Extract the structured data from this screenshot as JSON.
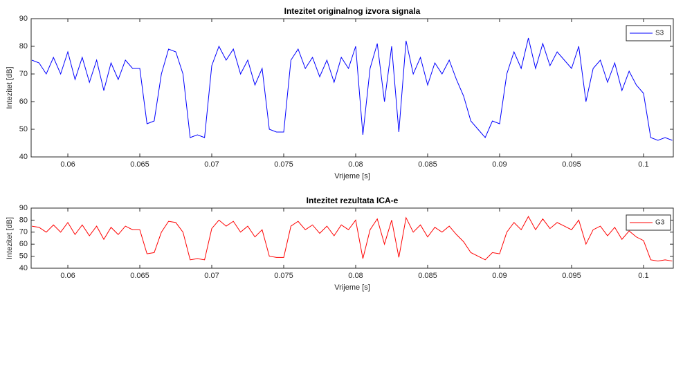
{
  "chart_data": [
    {
      "type": "line",
      "title": "Intezitet originalnog izvora signala",
      "xlabel": "Vrijeme [s]",
      "ylabel": "Intezitet [dB]",
      "x": [
        0.0575,
        0.058,
        0.0585,
        0.059,
        0.0595,
        0.06,
        0.0605,
        0.061,
        0.0615,
        0.062,
        0.0625,
        0.063,
        0.0635,
        0.064,
        0.0645,
        0.065,
        0.0655,
        0.066,
        0.0665,
        0.067,
        0.0675,
        0.068,
        0.0685,
        0.069,
        0.0695,
        0.07,
        0.0705,
        0.071,
        0.0715,
        0.072,
        0.0725,
        0.073,
        0.0735,
        0.074,
        0.0745,
        0.075,
        0.0755,
        0.076,
        0.0765,
        0.077,
        0.0775,
        0.078,
        0.0785,
        0.079,
        0.0795,
        0.08,
        0.0805,
        0.081,
        0.0815,
        0.082,
        0.0825,
        0.083,
        0.0835,
        0.084,
        0.0845,
        0.085,
        0.0855,
        0.086,
        0.0865,
        0.087,
        0.0875,
        0.088,
        0.0885,
        0.089,
        0.0895,
        0.09,
        0.0905,
        0.091,
        0.0915,
        0.092,
        0.0925,
        0.093,
        0.0935,
        0.094,
        0.0945,
        0.095,
        0.0955,
        0.096,
        0.0965,
        0.097,
        0.0975,
        0.098,
        0.0985,
        0.099,
        0.0995,
        0.1,
        0.1005,
        0.101,
        0.1015,
        0.102
      ],
      "series": [
        {
          "name": "S3",
          "color": "#0000ff",
          "values": [
            75,
            74,
            70,
            76,
            70,
            78,
            68,
            76,
            67,
            75,
            64,
            74,
            68,
            75,
            72,
            72,
            52,
            53,
            70,
            79,
            78,
            70,
            47,
            48,
            47,
            73,
            80,
            75,
            79,
            70,
            75,
            66,
            72,
            50,
            49,
            49,
            75,
            79,
            72,
            76,
            69,
            75,
            67,
            76,
            72,
            80,
            48,
            72,
            81,
            60,
            80,
            49,
            82,
            70,
            76,
            66,
            74,
            70,
            75,
            68,
            62,
            53,
            50,
            47,
            53,
            52,
            70,
            78,
            72,
            83,
            72,
            81,
            73,
            78,
            75,
            72,
            80,
            60,
            72,
            75,
            67,
            74,
            64,
            71,
            66,
            63,
            47,
            46,
            47,
            46
          ]
        }
      ],
      "xlim": [
        0.05745,
        0.10207
      ],
      "ylim": [
        40,
        90
      ],
      "xticks": [
        0.06,
        0.065,
        0.07,
        0.075,
        0.08,
        0.085,
        0.09,
        0.095,
        0.1
      ],
      "yticks": [
        40,
        50,
        60,
        70,
        80,
        90
      ],
      "grid": false,
      "legend": "upper right"
    },
    {
      "type": "line",
      "title": "Intezitet rezultata ICA-e",
      "xlabel": "Vrijeme [s]",
      "ylabel": "Intezitet [dB]",
      "x": [
        0.0575,
        0.058,
        0.0585,
        0.059,
        0.0595,
        0.06,
        0.0605,
        0.061,
        0.0615,
        0.062,
        0.0625,
        0.063,
        0.0635,
        0.064,
        0.0645,
        0.065,
        0.0655,
        0.066,
        0.0665,
        0.067,
        0.0675,
        0.068,
        0.0685,
        0.069,
        0.0695,
        0.07,
        0.0705,
        0.071,
        0.0715,
        0.072,
        0.0725,
        0.073,
        0.0735,
        0.074,
        0.0745,
        0.075,
        0.0755,
        0.076,
        0.0765,
        0.077,
        0.0775,
        0.078,
        0.0785,
        0.079,
        0.0795,
        0.08,
        0.0805,
        0.081,
        0.0815,
        0.082,
        0.0825,
        0.083,
        0.0835,
        0.084,
        0.0845,
        0.085,
        0.0855,
        0.086,
        0.0865,
        0.087,
        0.0875,
        0.088,
        0.0885,
        0.089,
        0.0895,
        0.09,
        0.0905,
        0.091,
        0.0915,
        0.092,
        0.0925,
        0.093,
        0.0935,
        0.094,
        0.0945,
        0.095,
        0.0955,
        0.096,
        0.0965,
        0.097,
        0.0975,
        0.098,
        0.0985,
        0.099,
        0.0995,
        0.1,
        0.1005,
        0.101,
        0.1015,
        0.102
      ],
      "series": [
        {
          "name": "G3",
          "color": "#ff0000",
          "values": [
            75,
            74,
            70,
            76,
            70,
            78,
            68,
            76,
            67,
            75,
            64,
            74,
            68,
            75,
            72,
            72,
            52,
            53,
            70,
            79,
            78,
            70,
            47,
            48,
            47,
            73,
            80,
            75,
            79,
            70,
            75,
            66,
            72,
            50,
            49,
            49,
            75,
            79,
            72,
            76,
            69,
            75,
            67,
            76,
            72,
            80,
            48,
            72,
            81,
            60,
            80,
            49,
            82,
            70,
            76,
            66,
            74,
            70,
            75,
            68,
            62,
            53,
            50,
            47,
            53,
            52,
            70,
            78,
            72,
            83,
            72,
            81,
            73,
            78,
            75,
            72,
            80,
            60,
            72,
            75,
            67,
            74,
            64,
            71,
            66,
            63,
            47,
            46,
            47,
            46
          ]
        }
      ],
      "xlim": [
        0.05745,
        0.10207
      ],
      "ylim": [
        40,
        90
      ],
      "xticks": [
        0.06,
        0.065,
        0.07,
        0.075,
        0.08,
        0.085,
        0.09,
        0.095,
        0.1
      ],
      "yticks": [
        40,
        50,
        60,
        70,
        80,
        90
      ],
      "grid": false,
      "legend": "upper right"
    }
  ]
}
